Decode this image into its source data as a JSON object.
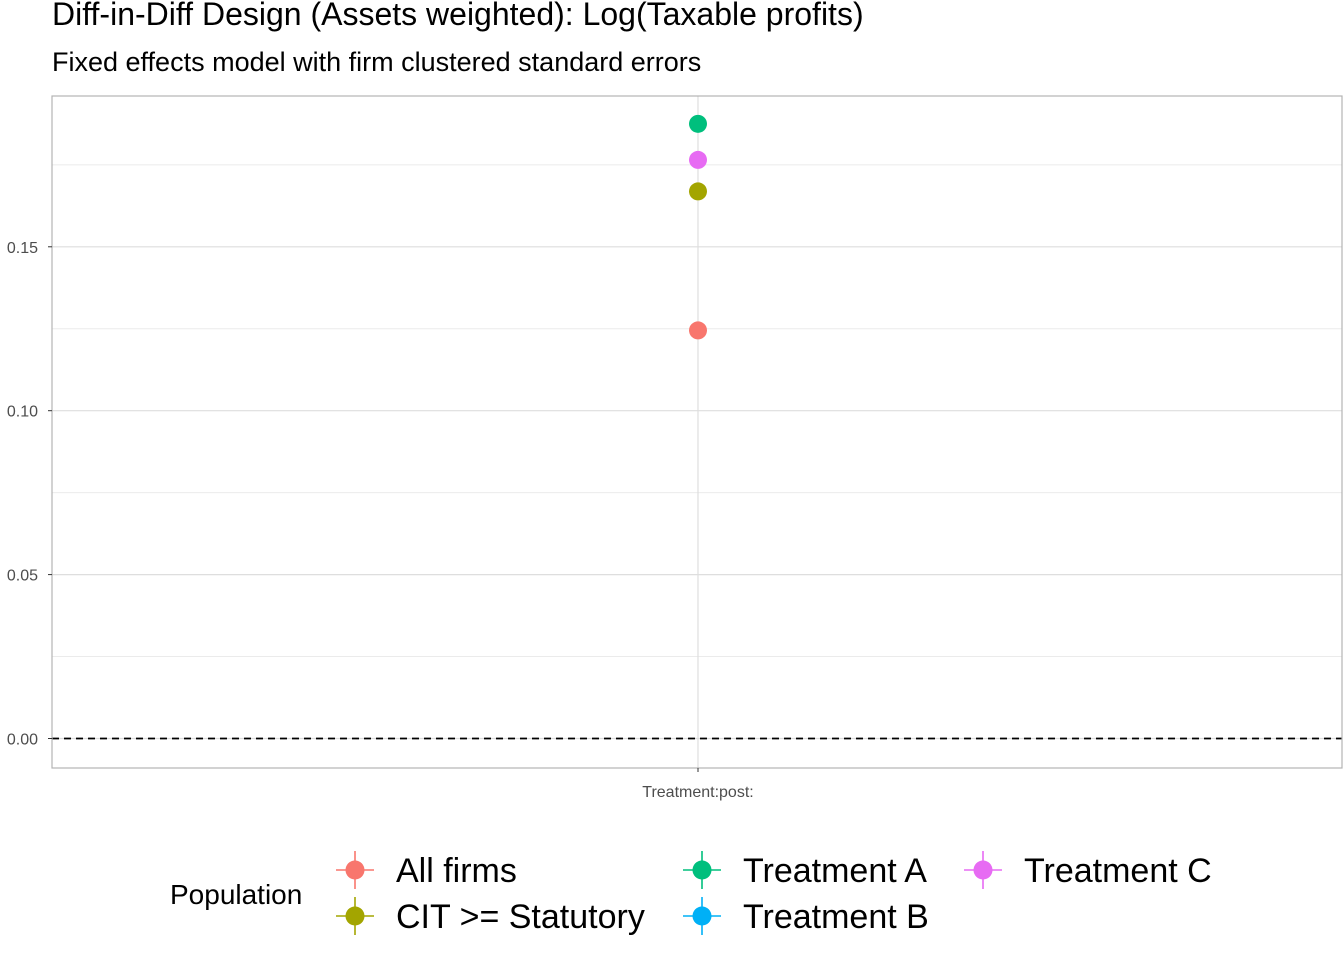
{
  "chart_data": {
    "type": "scatter",
    "title": "Diff-in-Diff Design (Assets weighted): Log(Taxable profits)",
    "subtitle": "Fixed effects model with firm clustered standard errors",
    "categories": [
      "Treatment:post:"
    ],
    "ylim": [
      -0.009,
      0.196
    ],
    "y_ticks": [
      0.0,
      0.05,
      0.1,
      0.15
    ],
    "y_tick_labels": [
      "0.00",
      "0.05",
      "0.10",
      "0.15"
    ],
    "reference_line": {
      "y": 0,
      "style": "dashed"
    },
    "grid": true,
    "legend": {
      "title": "Population",
      "position": "bottom",
      "entries": [
        {
          "name": "All firms",
          "color": "#F8766D"
        },
        {
          "name": "CIT >= Statutory",
          "color": "#A3A500"
        },
        {
          "name": "Treatment A",
          "color": "#00BF7D"
        },
        {
          "name": "Treatment B",
          "color": "#00B0F6"
        },
        {
          "name": "Treatment C",
          "color": "#E76BF3"
        }
      ]
    },
    "series": [
      {
        "name": "All firms",
        "color": "#F8766D",
        "x": "Treatment:post:",
        "y": 0.1245
      },
      {
        "name": "CIT >= Statutory",
        "color": "#A3A500",
        "x": "Treatment:post:",
        "y": 0.1669
      },
      {
        "name": "Treatment A",
        "color": "#00BF7D",
        "x": "Treatment:post:",
        "y": 0.1875
      },
      {
        "name": "Treatment B",
        "color": "#00B0F6",
        "x": "Treatment:post:",
        "y": null
      },
      {
        "name": "Treatment C",
        "color": "#E76BF3",
        "x": "Treatment:post:",
        "y": 0.1765
      }
    ]
  }
}
